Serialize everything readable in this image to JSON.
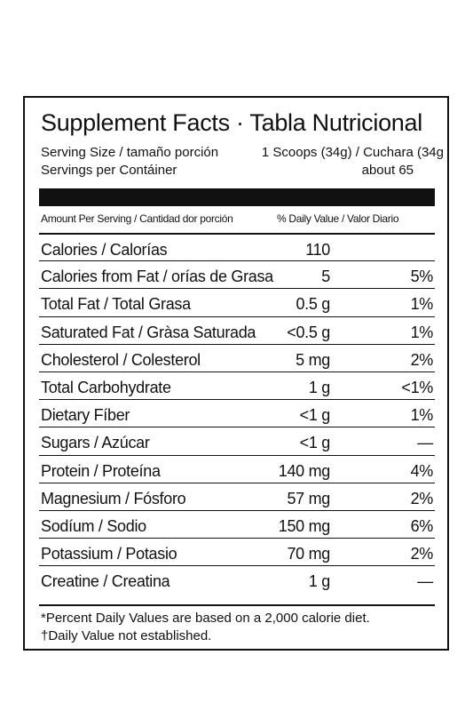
{
  "title": "Supplement Facts · Tabla Nutricional",
  "serving_size_label": "Serving Size / tamaño porción",
  "serving_size_value": "1 Scoops (34g) / Cuchara (34g",
  "servings_label": "Servings per Contáiner",
  "servings_value": "about 65",
  "col_amount": "Amount Per Serving / Cantidad dor porción",
  "col_dv": "% Daily Value / Valor Diario",
  "rows": [
    {
      "name": "Calories / Calorías",
      "amount": "110",
      "dv": ""
    },
    {
      "name": "Calories from Fat / orías de Grasa",
      "amount": "5",
      "dv": "5%"
    },
    {
      "name": "Total Fat / Total Grasa",
      "amount": "0.5 g",
      "dv": "1%"
    },
    {
      "name": "Saturated Fat / Gràsa Saturada",
      "amount": "<0.5 g",
      "dv": "1%"
    },
    {
      "name": "Cholesterol / Colesterol",
      "amount": "5 mg",
      "dv": "2%"
    },
    {
      "name": "Total Carbohydrate",
      "amount": "1 g",
      "dv": "<1%"
    },
    {
      "name": "Dietary Fíber",
      "amount": "<1 g",
      "dv": "1%"
    },
    {
      "name": "Sugars / Azúcar",
      "amount": "<1 g",
      "dv": "—"
    },
    {
      "name": "Protein / Proteína",
      "amount": "140 mg",
      "dv": "4%"
    },
    {
      "name": "Magnesium / Fósforo",
      "amount": "57 mg",
      "dv": "2%"
    },
    {
      "name": "Sodíum / Sodio",
      "amount": "150 mg",
      "dv": "6%"
    },
    {
      "name": "Potassium / Potasio",
      "amount": "70 mg",
      "dv": "2%"
    },
    {
      "name": "Creatine / Creatina",
      "amount": "1 g",
      "dv": "—"
    }
  ],
  "footnote_1": "*Percent Daily Values are based on a 2,000 calorie diet.",
  "footnote_2": "†Daily Value not established."
}
